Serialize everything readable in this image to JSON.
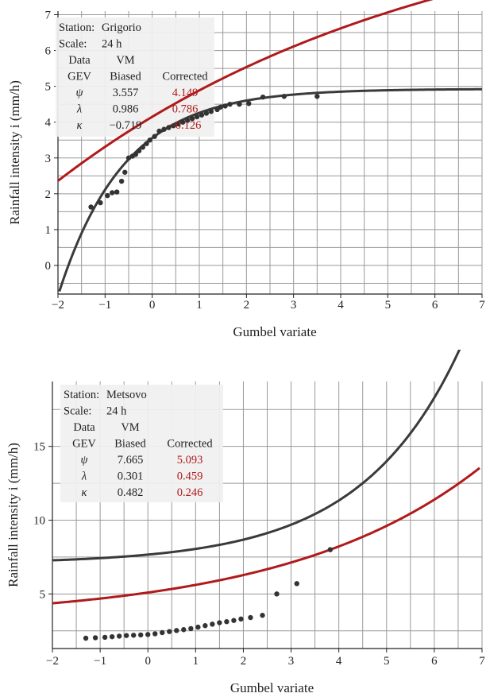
{
  "chart_data": [
    {
      "type": "line",
      "xlabel": "Gumbel variate",
      "ylabel": "Rainfall intensity i (mm/h)",
      "xlim": [
        -2,
        7
      ],
      "ylim": [
        -0.8,
        7.1
      ],
      "xticks": [
        "−2",
        "−1",
        "0",
        "1",
        "2",
        "3",
        "4",
        "5",
        "6",
        "7"
      ],
      "yticks": [
        "0",
        "1",
        "2",
        "3",
        "4",
        "5",
        "6",
        "7"
      ],
      "colors": {
        "biased": "#3a3a3a",
        "corrected": "#b01a1a",
        "points": "#333333",
        "grid": "#999999"
      },
      "info_table": {
        "rows": [
          [
            "Station:",
            "Grigorio",
            ""
          ],
          [
            "Scale:",
            "24 h",
            ""
          ],
          [
            "Data",
            "VM",
            ""
          ],
          [
            "GEV",
            "Biased",
            "Corrected"
          ],
          [
            "ψ",
            "3.557",
            "4.149"
          ],
          [
            "λ",
            "0.986",
            "0.786"
          ],
          [
            "κ",
            "−0.719",
            "−0.126"
          ]
        ]
      },
      "series": [
        {
          "name": "Biased",
          "params": {
            "psi": 3.557,
            "lambda": 0.986,
            "kappa": -0.719
          }
        },
        {
          "name": "Corrected",
          "params": {
            "psi": 4.149,
            "lambda": 0.786,
            "kappa": -0.126
          }
        }
      ],
      "points": [
        [
          -1.3,
          1.63
        ],
        [
          -1.1,
          1.75
        ],
        [
          -0.95,
          1.95
        ],
        [
          -0.85,
          2.03
        ],
        [
          -0.75,
          2.05
        ],
        [
          -0.65,
          2.35
        ],
        [
          -0.58,
          2.6
        ],
        [
          -0.5,
          3.0
        ],
        [
          -0.42,
          3.05
        ],
        [
          -0.35,
          3.1
        ],
        [
          -0.28,
          3.2
        ],
        [
          -0.2,
          3.3
        ],
        [
          -0.12,
          3.4
        ],
        [
          -0.05,
          3.5
        ],
        [
          0.05,
          3.6
        ],
        [
          0.15,
          3.75
        ],
        [
          0.25,
          3.8
        ],
        [
          0.35,
          3.85
        ],
        [
          0.45,
          3.9
        ],
        [
          0.55,
          3.95
        ],
        [
          0.65,
          4.0
        ],
        [
          0.75,
          4.05
        ],
        [
          0.85,
          4.1
        ],
        [
          0.95,
          4.15
        ],
        [
          1.05,
          4.2
        ],
        [
          1.15,
          4.25
        ],
        [
          1.25,
          4.3
        ],
        [
          1.38,
          4.35
        ],
        [
          1.45,
          4.42
        ],
        [
          1.55,
          4.45
        ],
        [
          1.65,
          4.5
        ],
        [
          1.85,
          4.5
        ],
        [
          2.05,
          4.52
        ],
        [
          2.35,
          4.7
        ],
        [
          2.8,
          4.72
        ],
        [
          3.5,
          4.72
        ]
      ]
    },
    {
      "type": "line",
      "xlabel": "Gumbel variate",
      "ylabel": "Rainfall intensity i (mm/h)",
      "xlim": [
        -2,
        7
      ],
      "ylim": [
        1.3,
        19.4
      ],
      "xticks": [
        "−2",
        "−1",
        "0",
        "1",
        "2",
        "3",
        "4",
        "5",
        "6",
        "7"
      ],
      "yticks": [
        "5",
        "10",
        "15"
      ],
      "colors": {
        "biased": "#3a3a3a",
        "corrected": "#b01a1a",
        "points": "#333333",
        "grid": "#999999"
      },
      "info_table": {
        "rows": [
          [
            "Station:",
            "Metsovo",
            ""
          ],
          [
            "Scale:",
            "24 h",
            ""
          ],
          [
            "Data",
            "VM",
            ""
          ],
          [
            "GEV",
            "Biased",
            "Corrected"
          ],
          [
            "ψ",
            "7.665",
            "5.093"
          ],
          [
            "λ",
            "0.301",
            "0.459"
          ],
          [
            "κ",
            "0.482",
            "0.246"
          ]
        ]
      },
      "series": [
        {
          "name": "Biased",
          "params": {
            "psi": 7.665,
            "lambda": 0.301,
            "kappa": 0.482
          }
        },
        {
          "name": "Corrected",
          "params": {
            "psi": 5.093,
            "lambda": 0.459,
            "kappa": 0.246
          }
        }
      ],
      "points": [
        [
          -1.3,
          2.0
        ],
        [
          -1.1,
          2.03
        ],
        [
          -0.9,
          2.06
        ],
        [
          -0.75,
          2.1
        ],
        [
          -0.6,
          2.14
        ],
        [
          -0.45,
          2.18
        ],
        [
          -0.3,
          2.2
        ],
        [
          -0.15,
          2.22
        ],
        [
          0.0,
          2.25
        ],
        [
          0.15,
          2.3
        ],
        [
          0.3,
          2.38
        ],
        [
          0.45,
          2.45
        ],
        [
          0.6,
          2.52
        ],
        [
          0.75,
          2.58
        ],
        [
          0.9,
          2.65
        ],
        [
          1.05,
          2.75
        ],
        [
          1.2,
          2.85
        ],
        [
          1.35,
          2.95
        ],
        [
          1.5,
          3.05
        ],
        [
          1.65,
          3.12
        ],
        [
          1.8,
          3.2
        ],
        [
          1.95,
          3.3
        ],
        [
          2.15,
          3.4
        ],
        [
          2.4,
          3.55
        ],
        [
          2.7,
          5.0
        ],
        [
          3.12,
          5.7
        ],
        [
          3.82,
          8.0
        ]
      ]
    }
  ]
}
